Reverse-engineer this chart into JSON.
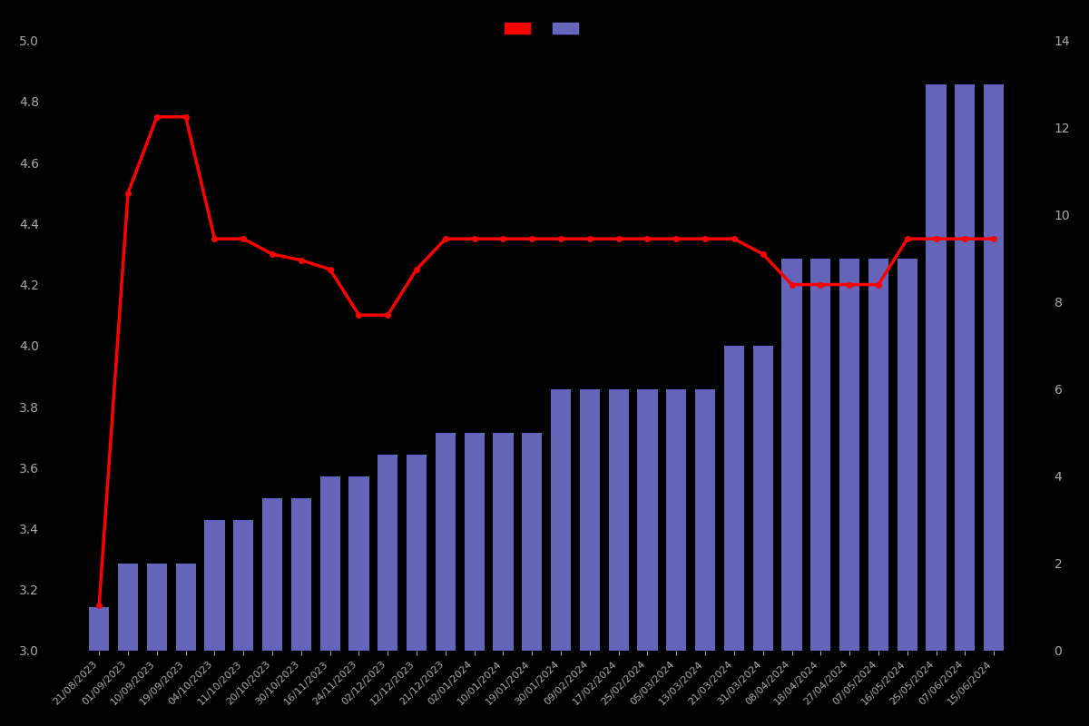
{
  "dates": [
    "21/08/2023",
    "01/09/2023",
    "10/09/2023",
    "19/09/2023",
    "04/10/2023",
    "11/10/2023",
    "20/10/2023",
    "30/10/2023",
    "16/11/2023",
    "24/11/2023",
    "02/12/2023",
    "12/12/2023",
    "21/12/2023",
    "02/01/2024",
    "10/01/2024",
    "19/01/2024",
    "30/01/2024",
    "09/02/2024",
    "17/02/2024",
    "25/02/2024",
    "05/03/2024",
    "13/03/2024",
    "21/03/2024",
    "31/03/2024",
    "08/04/2024",
    "18/04/2024",
    "27/04/2024",
    "07/05/2024",
    "16/05/2024",
    "25/05/2024",
    "07/06/2024",
    "15/06/2024"
  ],
  "bar_counts": [
    1,
    2,
    2,
    2,
    3,
    3,
    3.5,
    3.5,
    4,
    4,
    4.5,
    4.5,
    5,
    5,
    5,
    5,
    6,
    6,
    6,
    6,
    6,
    6,
    7,
    7,
    9,
    9,
    9,
    9,
    9,
    13,
    13,
    13
  ],
  "line_values": [
    3.15,
    4.5,
    4.75,
    4.75,
    4.35,
    4.35,
    4.3,
    4.28,
    4.25,
    4.1,
    4.1,
    4.25,
    4.35,
    4.35,
    4.35,
    4.35,
    4.35,
    4.35,
    4.35,
    4.35,
    4.35,
    4.35,
    4.35,
    4.3,
    4.2,
    4.2,
    4.2,
    4.2,
    4.35,
    4.35,
    4.35,
    4.35
  ],
  "bar_color": "#7777dd",
  "line_color": "#ff0000",
  "background_color": "#000000",
  "text_color": "#aaaaaa",
  "left_ylim": [
    3.0,
    5.0
  ],
  "right_ylim": [
    0,
    14
  ],
  "left_yticks": [
    3.0,
    3.2,
    3.4,
    3.6,
    3.8,
    4.0,
    4.2,
    4.4,
    4.6,
    4.8,
    5.0
  ],
  "right_yticks": [
    0,
    2,
    4,
    6,
    8,
    10,
    12,
    14
  ],
  "figsize": [
    12.0,
    8.0
  ]
}
